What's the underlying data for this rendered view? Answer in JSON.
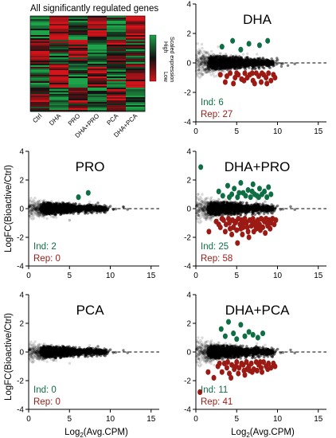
{
  "heatmap": {
    "title": "All significantly regulated genes",
    "columns": [
      "Ctrl",
      "DHA",
      "PRO",
      "DHA+PRO",
      "PCA",
      "DHA+PCA"
    ],
    "colorbar": {
      "high": "High",
      "low": "Low",
      "label": "Scaled expression"
    },
    "colors": {
      "high": "#1fa34a",
      "mid": "#111111",
      "low": "#d4141b"
    }
  },
  "shared_axis": {
    "ylabel": "LogFC(Bioactive/Ctrl)",
    "xlabel_main": "Log",
    "xlabel_sub": "2",
    "xlabel_rest": "(Avg.CPM)"
  },
  "colors": {
    "induced": "#0e6e44",
    "repressed": "#9b1a14",
    "background_points": "#000000"
  },
  "chart_data": [
    {
      "type": "heatmap",
      "title": "All significantly regulated genes",
      "columns": [
        "Ctrl",
        "DHA",
        "PRO",
        "DHA+PRO",
        "PCA",
        "DHA+PCA"
      ]
    },
    {
      "type": "scatter",
      "title": "DHA",
      "xlim": [
        0,
        16
      ],
      "ylim": [
        -4,
        4
      ],
      "xticks": [
        "0",
        "5",
        "10",
        "15"
      ],
      "yticks": [
        "4",
        "2",
        "0",
        "-2",
        "-4"
      ],
      "ind_label": "Ind: 6",
      "rep_label": "Rep: 27",
      "induced_points": [
        [
          3.2,
          1.1
        ],
        [
          4.5,
          1.5
        ],
        [
          5.5,
          0.9
        ],
        [
          6.5,
          1.3
        ],
        [
          7.8,
          1.2
        ],
        [
          8.8,
          1.5
        ]
      ],
      "repressed_points": [
        [
          3.0,
          -0.8
        ],
        [
          3.6,
          -1.3
        ],
        [
          4.2,
          -0.7
        ],
        [
          4.8,
          -1.0
        ],
        [
          5.2,
          -0.8
        ],
        [
          5.6,
          -1.1
        ],
        [
          6.0,
          -0.7
        ],
        [
          6.3,
          -1.0
        ],
        [
          6.6,
          -0.8
        ],
        [
          7.0,
          -1.2
        ],
        [
          7.4,
          -0.7
        ],
        [
          7.7,
          -0.9
        ],
        [
          8.0,
          -1.3
        ],
        [
          8.3,
          -0.8
        ],
        [
          8.6,
          -1.0
        ],
        [
          8.9,
          -0.7
        ],
        [
          9.2,
          -1.2
        ],
        [
          9.5,
          -0.8
        ],
        [
          3.8,
          -0.9
        ],
        [
          4.6,
          -1.4
        ],
        [
          5.9,
          -1.2
        ],
        [
          6.9,
          -0.7
        ],
        [
          7.2,
          -1.4
        ],
        [
          8.1,
          -0.7
        ],
        [
          8.7,
          -1.4
        ],
        [
          9.7,
          -1.0
        ],
        [
          5.0,
          -0.7
        ]
      ]
    },
    {
      "type": "scatter",
      "title": "PRO",
      "xlim": [
        0,
        16
      ],
      "ylim": [
        -4,
        4
      ],
      "xticks": [
        "0",
        "5",
        "10",
        "15"
      ],
      "yticks": [
        "4",
        "2",
        "0",
        "-2",
        "-4"
      ],
      "ind_label": "Ind: 2",
      "rep_label": "Rep: 0",
      "induced_points": [
        [
          6.1,
          0.8
        ],
        [
          7.3,
          1.1
        ]
      ],
      "repressed_points": []
    },
    {
      "type": "scatter",
      "title": "DHA+PRO",
      "xlim": [
        0,
        16
      ],
      "ylim": [
        -4,
        4
      ],
      "xticks": [
        "0",
        "5",
        "10",
        "15"
      ],
      "yticks": [
        "4",
        "2",
        "0",
        "-2",
        "-4"
      ],
      "ind_label": "Ind: 25",
      "rep_label": "Rep: 58",
      "induced_points": [
        [
          0.6,
          2.9
        ],
        [
          2.8,
          1.2
        ],
        [
          3.3,
          0.9
        ],
        [
          3.9,
          1.6
        ],
        [
          4.4,
          1.0
        ],
        [
          4.7,
          1.4
        ],
        [
          5.1,
          0.8
        ],
        [
          5.5,
          1.8
        ],
        [
          5.8,
          1.1
        ],
        [
          6.1,
          0.9
        ],
        [
          6.4,
          1.3
        ],
        [
          6.7,
          0.8
        ],
        [
          7.0,
          1.7
        ],
        [
          7.2,
          1.0
        ],
        [
          7.5,
          0.9
        ],
        [
          7.8,
          1.4
        ],
        [
          8.1,
          1.0
        ],
        [
          8.4,
          1.2
        ],
        [
          8.7,
          0.8
        ],
        [
          8.9,
          1.5
        ],
        [
          9.2,
          1.0
        ],
        [
          5.3,
          1.1
        ],
        [
          6.9,
          1.2
        ],
        [
          4.1,
          0.8
        ],
        [
          7.7,
          0.8
        ]
      ],
      "repressed_points": [
        [
          1.6,
          -1.6
        ],
        [
          2.5,
          -0.9
        ],
        [
          3.0,
          -1.3
        ],
        [
          3.4,
          -0.8
        ],
        [
          3.7,
          -1.1
        ],
        [
          4.0,
          -0.7
        ],
        [
          4.2,
          -1.4
        ],
        [
          4.5,
          -0.8
        ],
        [
          4.8,
          -1.0
        ],
        [
          5.0,
          -1.5
        ],
        [
          5.2,
          -0.7
        ],
        [
          5.4,
          -1.1
        ],
        [
          5.6,
          -0.8
        ],
        [
          5.8,
          -1.3
        ],
        [
          6.0,
          -0.7
        ],
        [
          6.2,
          -1.0
        ],
        [
          6.4,
          -1.6
        ],
        [
          6.6,
          -0.8
        ],
        [
          6.8,
          -1.2
        ],
        [
          7.0,
          -0.7
        ],
        [
          7.2,
          -1.0
        ],
        [
          7.4,
          -1.4
        ],
        [
          7.6,
          -0.8
        ],
        [
          7.8,
          -1.1
        ],
        [
          8.0,
          -0.7
        ],
        [
          8.2,
          -1.3
        ],
        [
          8.4,
          -0.9
        ],
        [
          8.6,
          -0.7
        ],
        [
          8.8,
          -1.2
        ],
        [
          9.0,
          -0.8
        ],
        [
          9.2,
          -1.0
        ],
        [
          9.4,
          -0.7
        ],
        [
          9.6,
          -1.1
        ],
        [
          5.1,
          -2.4
        ],
        [
          3.6,
          -1.6
        ],
        [
          4.4,
          -1.8
        ],
        [
          6.5,
          -2.0
        ],
        [
          7.1,
          -1.6
        ],
        [
          7.9,
          -1.5
        ],
        [
          8.5,
          -1.7
        ],
        [
          5.7,
          -1.8
        ],
        [
          6.9,
          -0.9
        ],
        [
          4.9,
          -0.9
        ],
        [
          3.2,
          -0.7
        ],
        [
          6.3,
          -1.3
        ],
        [
          7.5,
          -0.9
        ],
        [
          8.3,
          -0.8
        ],
        [
          9.1,
          -1.4
        ],
        [
          4.1,
          -1.0
        ],
        [
          5.5,
          -1.4
        ],
        [
          6.1,
          -0.9
        ],
        [
          7.3,
          -1.2
        ],
        [
          8.7,
          -1.0
        ],
        [
          2.8,
          -1.1
        ],
        [
          9.8,
          -0.8
        ],
        [
          4.6,
          -1.3
        ],
        [
          5.9,
          -1.0
        ],
        [
          7.7,
          -1.3
        ]
      ]
    },
    {
      "type": "scatter",
      "title": "PCA",
      "xlim": [
        0,
        16
      ],
      "ylim": [
        -4,
        4
      ],
      "xticks": [
        "0",
        "5",
        "10",
        "15"
      ],
      "yticks": [
        "4",
        "2",
        "0",
        "-2",
        "-4"
      ],
      "ind_label": "Ind: 0",
      "rep_label": "Rep: 0",
      "induced_points": [],
      "repressed_points": []
    },
    {
      "type": "scatter",
      "title": "DHA+PCA",
      "xlim": [
        0,
        16
      ],
      "ylim": [
        -4,
        4
      ],
      "xticks": [
        "0",
        "5",
        "10",
        "15"
      ],
      "yticks": [
        "4",
        "2",
        "0",
        "-2",
        "-4"
      ],
      "ind_label": "Ind: 11",
      "rep_label": "Rep: 41",
      "induced_points": [
        [
          3.1,
          1.6
        ],
        [
          3.6,
          1.1
        ],
        [
          4.0,
          2.1
        ],
        [
          4.6,
          1.3
        ],
        [
          5.0,
          0.9
        ],
        [
          5.5,
          1.9
        ],
        [
          6.0,
          1.1
        ],
        [
          6.5,
          1.4
        ],
        [
          7.0,
          1.2
        ],
        [
          7.6,
          1.0
        ],
        [
          8.2,
          1.3
        ]
      ],
      "repressed_points": [
        [
          0.5,
          -2.8
        ],
        [
          1.5,
          -1.4
        ],
        [
          2.2,
          -1.8
        ],
        [
          2.7,
          -1.0
        ],
        [
          3.2,
          -1.4
        ],
        [
          3.5,
          -0.8
        ],
        [
          3.8,
          -1.1
        ],
        [
          4.1,
          -1.5
        ],
        [
          4.4,
          -0.9
        ],
        [
          4.7,
          -1.2
        ],
        [
          5.0,
          -0.7
        ],
        [
          5.3,
          -1.1
        ],
        [
          5.6,
          -0.8
        ],
        [
          5.9,
          -1.3
        ],
        [
          6.2,
          -0.7
        ],
        [
          6.5,
          -1.0
        ],
        [
          6.8,
          -0.8
        ],
        [
          7.1,
          -1.2
        ],
        [
          7.4,
          -0.7
        ],
        [
          7.7,
          -0.9
        ],
        [
          8.0,
          -1.1
        ],
        [
          8.3,
          -0.7
        ],
        [
          8.6,
          -1.0
        ],
        [
          8.9,
          -0.8
        ],
        [
          9.2,
          -1.1
        ],
        [
          9.5,
          -0.8
        ],
        [
          4.3,
          -1.8
        ],
        [
          5.2,
          -1.5
        ],
        [
          6.0,
          -1.6
        ],
        [
          6.9,
          -1.4
        ],
        [
          7.5,
          -1.3
        ],
        [
          3.9,
          -0.7
        ],
        [
          5.8,
          -0.9
        ],
        [
          6.6,
          -1.3
        ],
        [
          8.1,
          -1.4
        ],
        [
          8.8,
          -1.2
        ],
        [
          9.7,
          -1.0
        ],
        [
          4.9,
          -1.0
        ],
        [
          7.9,
          -0.7
        ],
        [
          2.9,
          -0.8
        ],
        [
          6.3,
          -1.2
        ]
      ]
    }
  ]
}
